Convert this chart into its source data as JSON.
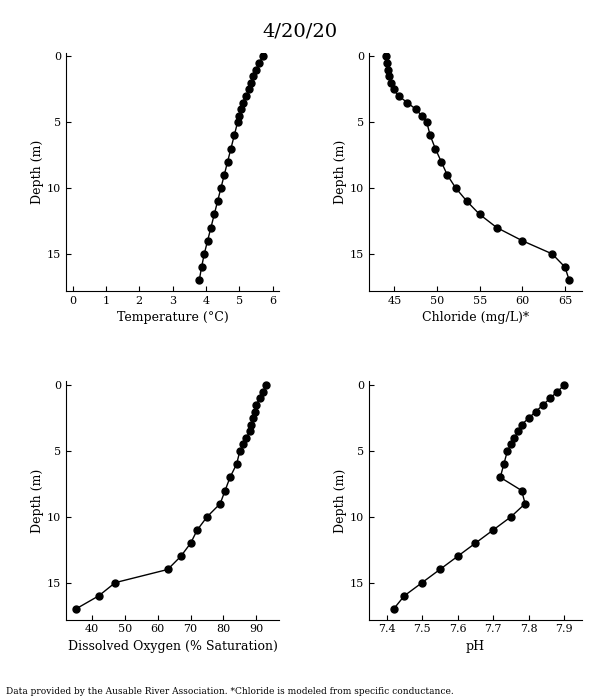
{
  "title": "4/20/20",
  "footnote": "Data provided by the Ausable River Association. *Chloride is modeled from specific conductance.",
  "depth": [
    0,
    0.5,
    1,
    1.5,
    2,
    2.5,
    3,
    3.5,
    4,
    4.5,
    5,
    6,
    7,
    8,
    9,
    10,
    11,
    12,
    13,
    14,
    15,
    16,
    17
  ],
  "temperature": [
    5.7,
    5.6,
    5.5,
    5.4,
    5.35,
    5.3,
    5.2,
    5.1,
    5.05,
    5.0,
    4.95,
    4.85,
    4.75,
    4.65,
    4.55,
    4.45,
    4.35,
    4.25,
    4.15,
    4.05,
    3.95,
    3.87,
    3.8
  ],
  "chloride": [
    44.0,
    44.1,
    44.2,
    44.4,
    44.6,
    44.9,
    45.5,
    46.5,
    47.5,
    48.2,
    48.8,
    49.2,
    49.8,
    50.5,
    51.2,
    52.2,
    53.5,
    55.0,
    57.0,
    60.0,
    63.5,
    65.0,
    65.5
  ],
  "do_sat": [
    93,
    92,
    91,
    90,
    89.5,
    89,
    88.5,
    88,
    87,
    86,
    85,
    84,
    82,
    80.5,
    79,
    75,
    72,
    70,
    67,
    63,
    47,
    42,
    35
  ],
  "ph": [
    7.9,
    7.88,
    7.86,
    7.84,
    7.82,
    7.8,
    7.78,
    7.77,
    7.76,
    7.75,
    7.74,
    7.73,
    7.72,
    7.78,
    7.79,
    7.75,
    7.7,
    7.65,
    7.6,
    7.55,
    7.5,
    7.45,
    7.42
  ],
  "temp_xlim": [
    -0.2,
    6.2
  ],
  "temp_xticks": [
    0,
    1,
    2,
    3,
    4,
    5,
    6
  ],
  "chloride_xlim": [
    42,
    67
  ],
  "chloride_xticks": [
    45,
    50,
    55,
    60,
    65
  ],
  "do_xlim": [
    32,
    97
  ],
  "do_xticks": [
    40,
    50,
    60,
    70,
    80,
    90
  ],
  "ph_xlim": [
    7.35,
    7.95
  ],
  "ph_xticks": [
    7.4,
    7.5,
    7.6,
    7.7,
    7.8,
    7.9
  ],
  "depth_lim": [
    17.8,
    -0.3
  ],
  "depth_ticks": [
    0,
    5,
    10,
    15
  ],
  "xlabel_temp": "Temperature (°C)",
  "xlabel_chloride": "Chloride (mg/L)*",
  "xlabel_do": "Dissolved Oxygen (% Saturation)",
  "xlabel_ph": "pH",
  "ylabel": "Depth (m)",
  "line_color": "black",
  "marker": "o",
  "markersize": 5,
  "linewidth": 1.0,
  "background_color": "white",
  "title_fontsize": 14,
  "label_fontsize": 9,
  "tick_fontsize": 8,
  "footnote_fontsize": 6.5
}
